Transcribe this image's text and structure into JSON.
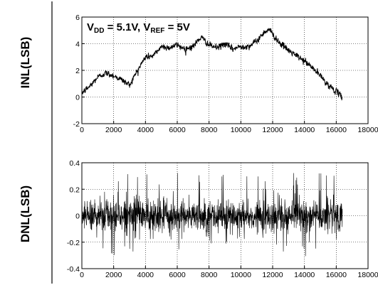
{
  "chart_data": [
    {
      "type": "line",
      "title": "",
      "ylabel": "INL(LSB)",
      "xlabel": "",
      "annotation": {
        "vdd_main": "V",
        "vdd_sub": "DD",
        "vdd_value": " = 5.1V, ",
        "vref_main": "V",
        "vref_sub": "REF",
        "vref_value": " = 5V"
      },
      "xlim": [
        0,
        18000
      ],
      "ylim": [
        -2,
        6
      ],
      "xticks": [
        "0",
        "2000",
        "4000",
        "6000",
        "8000",
        "10000",
        "12000",
        "14000",
        "16000",
        "18000"
      ],
      "yticks": [
        "-2",
        "0",
        "2",
        "4",
        "6"
      ],
      "grid": true,
      "x_max_data": 16383,
      "series": [
        {
          "values_description": "envelope of INL trace",
          "x": [
            0,
            500,
            1000,
            1500,
            2000,
            2500,
            3000,
            3500,
            4000,
            4500,
            5000,
            5500,
            6000,
            6500,
            7000,
            7500,
            8000,
            8500,
            9000,
            9500,
            10000,
            10500,
            11000,
            11500,
            11800,
            12000,
            12500,
            13000,
            13500,
            14000,
            14500,
            15000,
            15500,
            16000,
            16383
          ],
          "values": [
            0.3,
            0.8,
            1.5,
            1.8,
            1.6,
            1.3,
            0.9,
            2.0,
            3.0,
            3.1,
            3.8,
            3.7,
            3.9,
            3.6,
            3.8,
            4.5,
            3.9,
            3.7,
            4.0,
            3.6,
            3.8,
            3.8,
            4.2,
            4.9,
            5.1,
            4.7,
            4.0,
            3.5,
            3.1,
            2.7,
            2.2,
            1.6,
            0.9,
            0.4,
            0.0
          ]
        }
      ]
    },
    {
      "type": "line",
      "title": "",
      "ylabel": "DNL(LSB)",
      "xlabel": "",
      "xlim": [
        0,
        18000
      ],
      "ylim": [
        -0.4,
        0.4
      ],
      "xticks": [
        "0",
        "2000",
        "4000",
        "6000",
        "8000",
        "10000",
        "12000",
        "14000",
        "16000",
        "18000"
      ],
      "yticks": [
        "-0.4",
        "-0.2",
        "0",
        "0.2",
        "0.4"
      ],
      "grid": true,
      "x_max_data": 16383,
      "series": [
        {
          "band_typical": 0.1,
          "peak_max": 0.33,
          "peak_min": -0.33
        }
      ]
    }
  ],
  "colors": {
    "trace": "#000000",
    "grid": "#000000",
    "background": "#ffffff"
  }
}
